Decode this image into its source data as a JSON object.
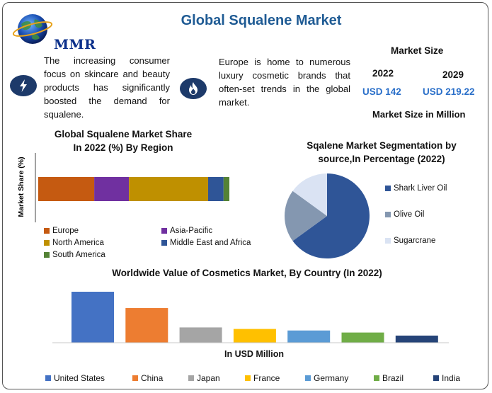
{
  "brand": {
    "logo_text": "MMR"
  },
  "title": "Global Squalene Market",
  "info": {
    "left_text": "The increasing consumer focus on skincare and beauty products has significantly boosted the demand for squalene.",
    "right_text": "Europe is home to numerous luxury cosmetic brands that often-set trends in the global market.",
    "left_icon": "lightning-icon",
    "right_icon": "flame-icon"
  },
  "market": {
    "heading": "Market Size",
    "year1": "2022",
    "year2": "2029",
    "value1": "USD 142",
    "value2": "USD 219.22",
    "unit": "Market Size in Million"
  },
  "colors": {
    "title": "#1f5b94",
    "accent_blue": "#2a6fc9",
    "icon_bg": "#1d3a6a"
  },
  "chart_data": [
    {
      "type": "bar",
      "orientation": "horizontal-stacked",
      "title": "Global Squalene Market Share In 2022 (%) By Region",
      "title_lines": [
        "Global Squalene Market Share",
        "In 2022 (%) By Region"
      ],
      "ylabel": "Market Share (%)",
      "series": [
        {
          "name": "Europe",
          "value": 29,
          "color": "#c55a11"
        },
        {
          "name": "Asia-Pacific",
          "value": 18,
          "color": "#7030a0"
        },
        {
          "name": "North America",
          "value": 41,
          "color": "#bf9000"
        },
        {
          "name": "Middle East and Africa",
          "value": 8,
          "color": "#2f5597"
        },
        {
          "name": "South America",
          "value": 3,
          "color": "#548235"
        }
      ],
      "legend_position": "bottom",
      "grid": false
    },
    {
      "type": "pie",
      "title": "Sqalene Market Segmentation by source,In Percentage (2022)",
      "title_lines": [
        "Sqalene Market Segmentation by",
        "source,In Percentage (2022)"
      ],
      "slices": [
        {
          "name": "Shark Liver Oil",
          "value": 65,
          "color": "#2f5597"
        },
        {
          "name": "Olive Oil",
          "value": 20,
          "color": "#8497b0"
        },
        {
          "name": "Sugarcrane",
          "value": 15,
          "color": "#dae3f3"
        }
      ],
      "legend_position": "right"
    },
    {
      "type": "bar",
      "title": "Worldwide Value of Cosmetics Market, By Country (In 2022)",
      "xlabel": "In USD Million",
      "categories": [
        "United States",
        "China",
        "Japan",
        "France",
        "Germany",
        "Brazil",
        "India"
      ],
      "values": [
        100,
        68,
        30,
        27,
        24,
        20,
        14
      ],
      "colors": [
        "#4472c4",
        "#ed7d31",
        "#a5a5a5",
        "#ffc000",
        "#5b9bd5",
        "#70ad47",
        "#264478"
      ],
      "legend_position": "bottom",
      "grid": false
    }
  ]
}
